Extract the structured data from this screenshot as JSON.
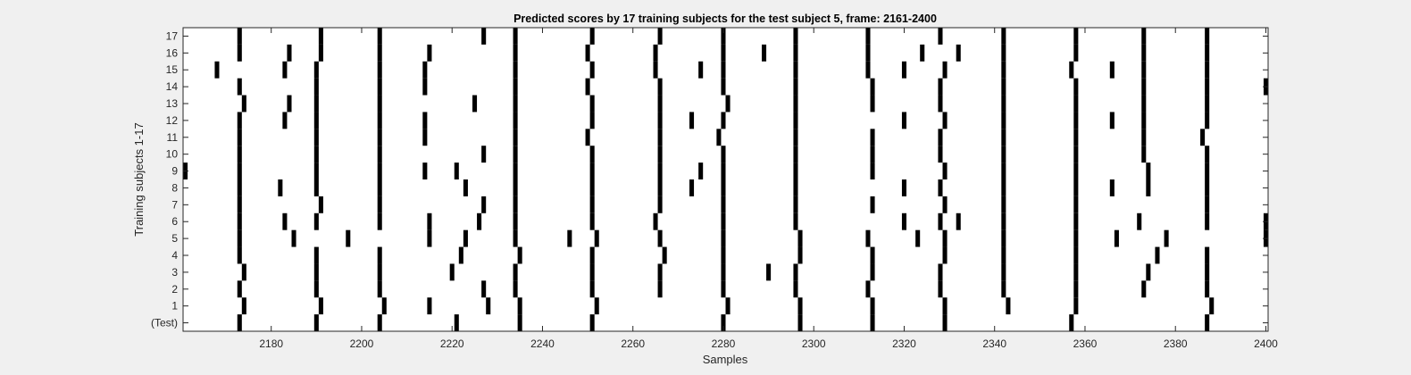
{
  "chart_data": {
    "type": "heatmap",
    "title": "Predicted scores by 17 training subjects for the test subject 5, frame: 2161-2400",
    "xlabel": "Samples",
    "ylabel": "Training subjects 1-17",
    "xlim": [
      2160.5,
      2400.5
    ],
    "xticks": [
      2180,
      2200,
      2220,
      2240,
      2260,
      2280,
      2300,
      2320,
      2340,
      2360,
      2380,
      2400
    ],
    "ytick_labels": [
      "(Test)",
      "1",
      "2",
      "3",
      "4",
      "5",
      "6",
      "7",
      "8",
      "9",
      "10",
      "11",
      "12",
      "13",
      "14",
      "15",
      "16",
      "17"
    ],
    "colormap": {
      "0": "#ffffff",
      "1": "#000000"
    },
    "grid": false,
    "rows": [
      {
        "label": "(Test)",
        "x": [
          2173,
          2190,
          2204,
          2221,
          2235,
          2251,
          2280,
          2297,
          2313,
          2329,
          2357,
          2387
        ]
      },
      {
        "label": "1",
        "x": [
          2174,
          2191,
          2205,
          2215,
          2228,
          2235,
          2252,
          2281,
          2297,
          2313,
          2329,
          2343,
          2358,
          2388
        ]
      },
      {
        "label": "2",
        "x": [
          2173,
          2190,
          2204,
          2227,
          2234,
          2251,
          2266,
          2280,
          2296,
          2312,
          2328,
          2342,
          2358,
          2373,
          2387
        ]
      },
      {
        "label": "3",
        "x": [
          2174,
          2190,
          2204,
          2220,
          2234,
          2251,
          2266,
          2280,
          2290,
          2296,
          2313,
          2328,
          2342,
          2358,
          2374,
          2387
        ]
      },
      {
        "label": "4",
        "x": [
          2173,
          2190,
          2204,
          2222,
          2235,
          2251,
          2267,
          2280,
          2297,
          2313,
          2329,
          2342,
          2358,
          2376,
          2387
        ]
      },
      {
        "label": "5",
        "x": [
          2173,
          2185,
          2197,
          2215,
          2223,
          2234,
          2246,
          2252,
          2266,
          2280,
          2297,
          2312,
          2323,
          2329,
          2342,
          2358,
          2367,
          2378,
          2400
        ]
      },
      {
        "label": "6",
        "x": [
          2173,
          2183,
          2190,
          2204,
          2215,
          2226,
          2234,
          2251,
          2265,
          2280,
          2296,
          2320,
          2328,
          2332,
          2342,
          2358,
          2372,
          2387,
          2400
        ]
      },
      {
        "label": "7",
        "x": [
          2173,
          2191,
          2204,
          2227,
          2234,
          2251,
          2266,
          2280,
          2296,
          2313,
          2329,
          2342,
          2358,
          2387
        ]
      },
      {
        "label": "8",
        "x": [
          2173,
          2182,
          2190,
          2204,
          2223,
          2234,
          2251,
          2266,
          2273,
          2280,
          2296,
          2320,
          2328,
          2342,
          2358,
          2366,
          2374,
          2387
        ]
      },
      {
        "label": "9",
        "x": [
          2161,
          2173,
          2190,
          2204,
          2214,
          2221,
          2234,
          2251,
          2266,
          2275,
          2280,
          2296,
          2313,
          2329,
          2342,
          2358,
          2374,
          2387
        ]
      },
      {
        "label": "10",
        "x": [
          2173,
          2190,
          2204,
          2227,
          2234,
          2251,
          2266,
          2280,
          2296,
          2313,
          2328,
          2342,
          2358,
          2373,
          2387
        ]
      },
      {
        "label": "11",
        "x": [
          2173,
          2190,
          2204,
          2214,
          2234,
          2250,
          2266,
          2279,
          2296,
          2313,
          2328,
          2342,
          2358,
          2373,
          2386
        ]
      },
      {
        "label": "12",
        "x": [
          2173,
          2183,
          2190,
          2204,
          2214,
          2234,
          2251,
          2266,
          2273,
          2280,
          2296,
          2320,
          2329,
          2342,
          2358,
          2366,
          2373,
          2387
        ]
      },
      {
        "label": "13",
        "x": [
          2174,
          2184,
          2190,
          2204,
          2225,
          2234,
          2251,
          2266,
          2281,
          2296,
          2313,
          2328,
          2342,
          2358,
          2373,
          2387
        ]
      },
      {
        "label": "14",
        "x": [
          2173,
          2190,
          2204,
          2214,
          2234,
          2250,
          2266,
          2280,
          2296,
          2313,
          2328,
          2342,
          2358,
          2373,
          2387,
          2400
        ]
      },
      {
        "label": "15",
        "x": [
          2168,
          2183,
          2190,
          2204,
          2214,
          2234,
          2251,
          2265,
          2275,
          2280,
          2296,
          2312,
          2320,
          2329,
          2342,
          2357,
          2366,
          2373,
          2387
        ]
      },
      {
        "label": "16",
        "x": [
          2173,
          2184,
          2191,
          2204,
          2215,
          2234,
          2250,
          2265,
          2280,
          2289,
          2296,
          2312,
          2324,
          2332,
          2342,
          2358,
          2373,
          2387
        ]
      },
      {
        "label": "17",
        "x": [
          2173,
          2191,
          2204,
          2227,
          2234,
          2251,
          2266,
          2280,
          2296,
          2312,
          2328,
          2342,
          2358,
          2373,
          2387
        ]
      }
    ]
  }
}
